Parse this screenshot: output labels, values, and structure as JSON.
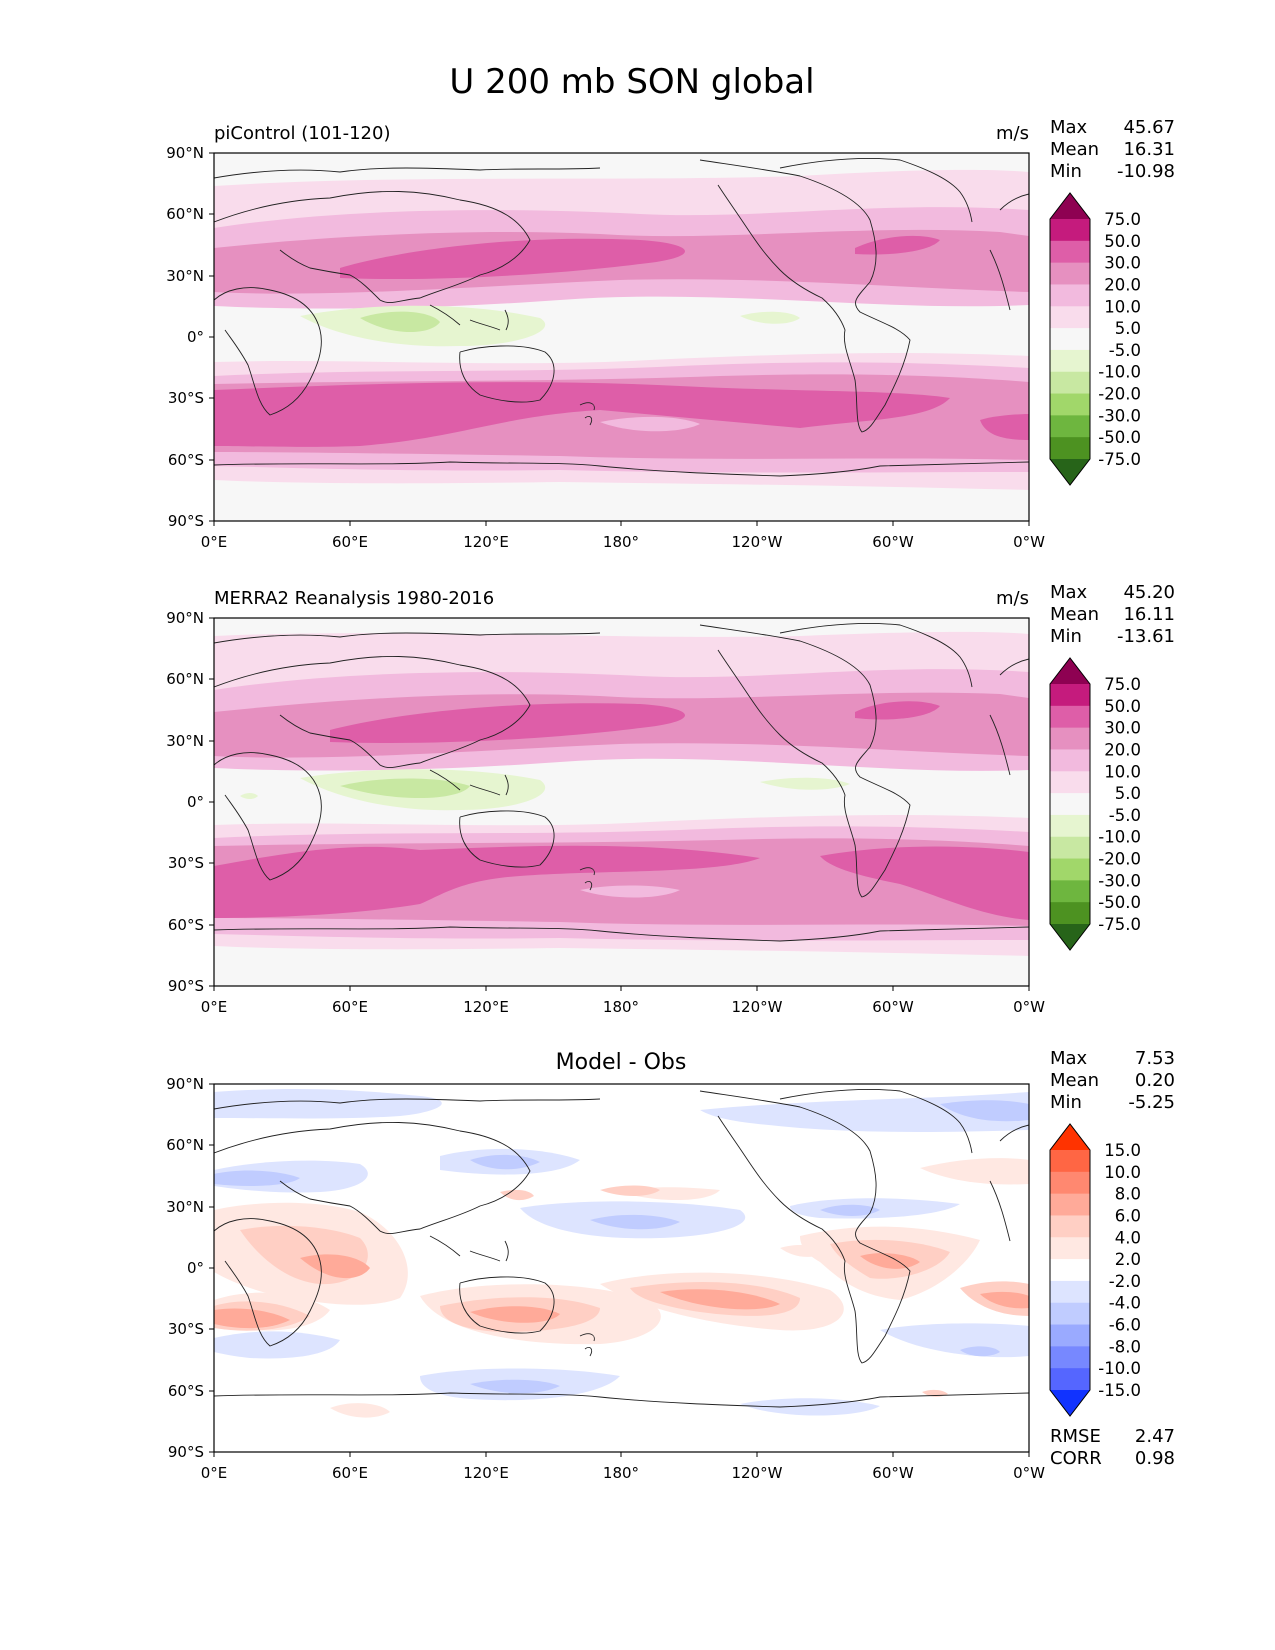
{
  "figure": {
    "title": "U 200 mb SON global",
    "x_tick_labels": [
      "0°E",
      "60°E",
      "120°E",
      "180°",
      "120°W",
      "60°W",
      "0°W"
    ],
    "y_tick_labels": [
      "90°N",
      "60°N",
      "30°N",
      "0°",
      "30°S",
      "60°S",
      "90°S"
    ]
  },
  "panels": [
    {
      "id": "piControl",
      "title_left": "piControl (101-120)",
      "title_center": "",
      "units": "m/s",
      "stats": [
        {
          "label": "Max",
          "value": "45.67"
        },
        {
          "label": "Mean",
          "value": "16.31"
        },
        {
          "label": "Min",
          "value": "-10.98"
        }
      ],
      "extra_stats": []
    },
    {
      "id": "merra2",
      "title_left": "MERRA2 Reanalysis 1980-2016",
      "title_center": "",
      "units": "m/s",
      "stats": [
        {
          "label": "Max",
          "value": "45.20"
        },
        {
          "label": "Mean",
          "value": "16.11"
        },
        {
          "label": "Min",
          "value": "-13.61"
        }
      ],
      "extra_stats": []
    },
    {
      "id": "diff",
      "title_left": "",
      "title_center": "Model - Obs",
      "units": "",
      "stats": [
        {
          "label": "Max",
          "value": "7.53"
        },
        {
          "label": "Mean",
          "value": "0.20"
        },
        {
          "label": "Min",
          "value": "-5.25"
        }
      ],
      "extra_stats": [
        {
          "label": "RMSE",
          "value": "2.47"
        },
        {
          "label": "CORR",
          "value": "0.98"
        }
      ]
    }
  ],
  "colorbars": {
    "field": {
      "labels": [
        "75.0",
        "50.0",
        "30.0",
        "20.0",
        "10.0",
        "5.0",
        "-5.0",
        "-10.0",
        "-20.0",
        "-30.0",
        "-50.0",
        "-75.0"
      ],
      "colors": [
        "#8e0152",
        "#c51b7d",
        "#de5ea8",
        "#e690c0",
        "#f2bade",
        "#f9dcec",
        "#f7f7f7",
        "#e6f5d0",
        "#c8e8a2",
        "#a1d76a",
        "#6eb63f",
        "#4d9221",
        "#276419"
      ]
    },
    "diff": {
      "labels": [
        "15.0",
        "10.0",
        "8.0",
        "6.0",
        "4.0",
        "2.0",
        "-2.0",
        "-4.0",
        "-6.0",
        "-8.0",
        "-10.0",
        "-15.0"
      ],
      "colors": [
        "#ff3300",
        "#ff6644",
        "#ff8870",
        "#ffaa99",
        "#ffcfc4",
        "#ffe8e2",
        "#ffffff",
        "#dde4ff",
        "#c0ccff",
        "#9aaaff",
        "#7788ff",
        "#5566ff",
        "#1133ff"
      ]
    }
  }
}
